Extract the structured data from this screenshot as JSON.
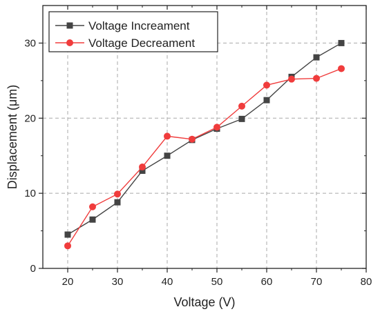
{
  "chart_data": {
    "type": "line",
    "xlabel": "Voltage (V)",
    "ylabel": "Displacement (μm)",
    "xlim": [
      15,
      80
    ],
    "ylim": [
      0,
      35
    ],
    "xticks": [
      20,
      30,
      40,
      50,
      60,
      70,
      80
    ],
    "yticks": [
      0,
      10,
      20,
      30
    ],
    "grid": true,
    "legend_position": "top-left",
    "series": [
      {
        "name": "Voltage Increament",
        "color": "#444444",
        "marker": "square",
        "x": [
          20,
          25,
          30,
          35,
          40,
          45,
          50,
          55,
          60,
          65,
          70,
          75
        ],
        "y": [
          4.5,
          6.5,
          8.8,
          13.0,
          15.0,
          17.1,
          18.6,
          19.9,
          22.4,
          25.5,
          28.1,
          30.0
        ]
      },
      {
        "name": "Voltage Decreament",
        "color": "#f03c3c",
        "marker": "circle",
        "x": [
          20,
          25,
          30,
          35,
          40,
          45,
          50,
          55,
          60,
          65,
          70,
          75
        ],
        "y": [
          3.0,
          8.2,
          9.9,
          13.5,
          17.6,
          17.2,
          18.8,
          21.6,
          24.4,
          25.2,
          25.3,
          26.6
        ]
      }
    ]
  }
}
